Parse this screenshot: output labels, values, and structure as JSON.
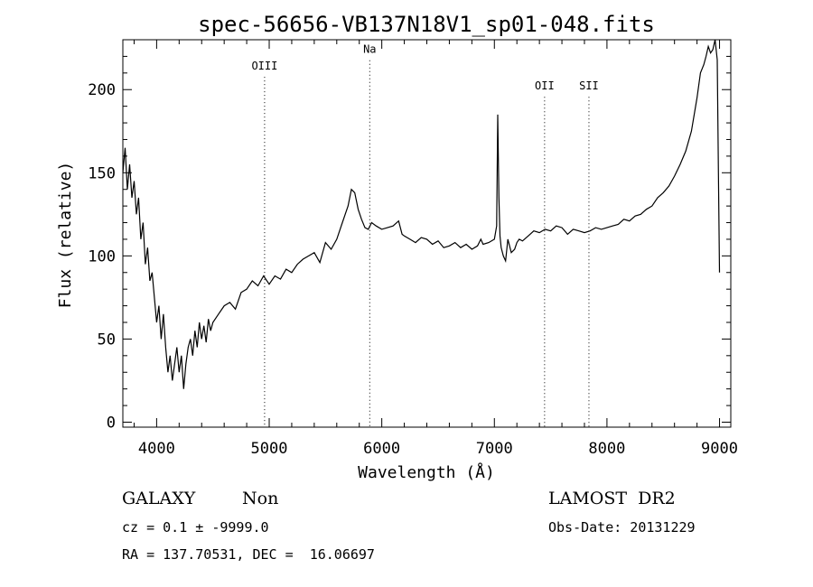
{
  "chart_data": {
    "type": "line",
    "title": "spec-56656-VB137N18V1_sp01-048.fits",
    "xlabel": "Wavelength (Å)",
    "ylabel": "Flux (relative)",
    "xlim": [
      3700,
      9100
    ],
    "ylim": [
      -3,
      230
    ],
    "x_ticks": [
      4000,
      5000,
      6000,
      7000,
      8000,
      9000
    ],
    "y_ticks": [
      0,
      50,
      100,
      150,
      200
    ],
    "grid": false,
    "line_color": "#000000",
    "spectral_lines": [
      {
        "name": "OIII",
        "x": 4959,
        "label_y": 212
      },
      {
        "name": "Na",
        "x": 5893,
        "label_y": 222
      },
      {
        "name": "OII",
        "x": 7446,
        "label_y": 200
      },
      {
        "name": "SII",
        "x": 7840,
        "label_y": 200
      }
    ],
    "series": [
      {
        "x": [
          3700,
          3720,
          3740,
          3760,
          3780,
          3800,
          3820,
          3840,
          3860,
          3880,
          3900,
          3920,
          3940,
          3960,
          3980,
          4000,
          4020,
          4040,
          4060,
          4080,
          4100,
          4120,
          4140,
          4160,
          4180,
          4200,
          4220,
          4240,
          4260,
          4280,
          4300,
          4320,
          4340,
          4360,
          4380,
          4400,
          4420,
          4440,
          4460,
          4480,
          4500,
          4550,
          4600,
          4650,
          4700,
          4750,
          4800,
          4850,
          4900,
          4950,
          5000,
          5050,
          5100,
          5150,
          5200,
          5250,
          5300,
          5350,
          5400,
          5450,
          5500,
          5550,
          5600,
          5650,
          5700,
          5730,
          5760,
          5790,
          5820,
          5850,
          5880,
          5910,
          5950,
          6000,
          6050,
          6100,
          6150,
          6180,
          6200,
          6250,
          6300,
          6350,
          6400,
          6450,
          6500,
          6550,
          6600,
          6650,
          6700,
          6750,
          6800,
          6850,
          6880,
          6900,
          6950,
          7000,
          7020,
          7030,
          7040,
          7050,
          7060,
          7080,
          7100,
          7120,
          7150,
          7180,
          7200,
          7220,
          7250,
          7300,
          7350,
          7400,
          7450,
          7500,
          7550,
          7600,
          7650,
          7700,
          7750,
          7800,
          7850,
          7900,
          7950,
          8000,
          8050,
          8100,
          8150,
          8200,
          8250,
          8300,
          8350,
          8400,
          8450,
          8500,
          8550,
          8600,
          8650,
          8700,
          8750,
          8800,
          8830,
          8860,
          8880,
          8900,
          8920,
          8940,
          8960,
          8980,
          8990,
          9000
        ],
        "values": [
          150,
          165,
          140,
          155,
          135,
          145,
          125,
          135,
          110,
          120,
          95,
          105,
          85,
          90,
          75,
          60,
          70,
          50,
          65,
          45,
          30,
          40,
          25,
          35,
          45,
          30,
          40,
          20,
          35,
          45,
          50,
          40,
          55,
          45,
          60,
          50,
          58,
          48,
          62,
          55,
          60,
          65,
          70,
          72,
          68,
          78,
          80,
          85,
          82,
          88,
          83,
          88,
          86,
          92,
          90,
          95,
          98,
          100,
          102,
          96,
          108,
          104,
          110,
          120,
          130,
          140,
          138,
          128,
          122,
          117,
          116,
          120,
          118,
          116,
          117,
          118,
          121,
          113,
          112,
          110,
          108,
          111,
          110,
          107,
          109,
          105,
          106,
          108,
          105,
          107,
          104,
          106,
          110,
          107,
          108,
          110,
          118,
          185,
          135,
          112,
          105,
          100,
          97,
          110,
          102,
          104,
          108,
          110,
          109,
          112,
          115,
          114,
          116,
          115,
          118,
          117,
          113,
          116,
          115,
          114,
          115,
          117,
          116,
          117,
          118,
          119,
          122,
          121,
          124,
          125,
          128,
          130,
          135,
          138,
          142,
          148,
          155,
          163,
          175,
          195,
          210,
          215,
          220,
          226,
          222,
          224,
          230,
          218,
          150,
          90
        ]
      }
    ],
    "footer": {
      "object_class": "GALAXY",
      "subclass": "Non",
      "catalog": "LAMOST  DR2",
      "cz": "cz = 0.1 ± -9999.0",
      "obs_date": "Obs-Date: 20131229",
      "coords": "RA = 137.70531, DEC =  16.06697"
    }
  }
}
